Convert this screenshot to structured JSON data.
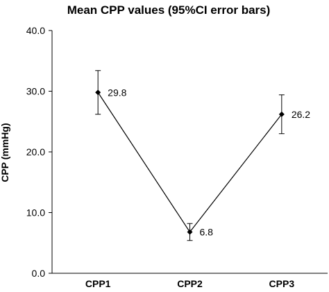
{
  "chart_data": {
    "type": "line",
    "title": "Mean CPP values (95%CI error bars)",
    "xlabel": "",
    "ylabel": "CPP (mmHg)",
    "categories": [
      "CPP1",
      "CPP2",
      "CPP3"
    ],
    "ylim": [
      0,
      40
    ],
    "yticks": [
      "0.0",
      "10.0",
      "20.0",
      "30.0",
      "40.0"
    ],
    "series": [
      {
        "values": [
          29.8,
          6.8,
          26.2
        ],
        "data_labels": [
          "29.8",
          "6.8",
          "26.2"
        ],
        "ci_lower": [
          26.2,
          5.4,
          23.0
        ],
        "ci_upper": [
          33.4,
          8.2,
          29.4
        ],
        "color": "#000000"
      }
    ],
    "grid": false,
    "legend": "none"
  }
}
